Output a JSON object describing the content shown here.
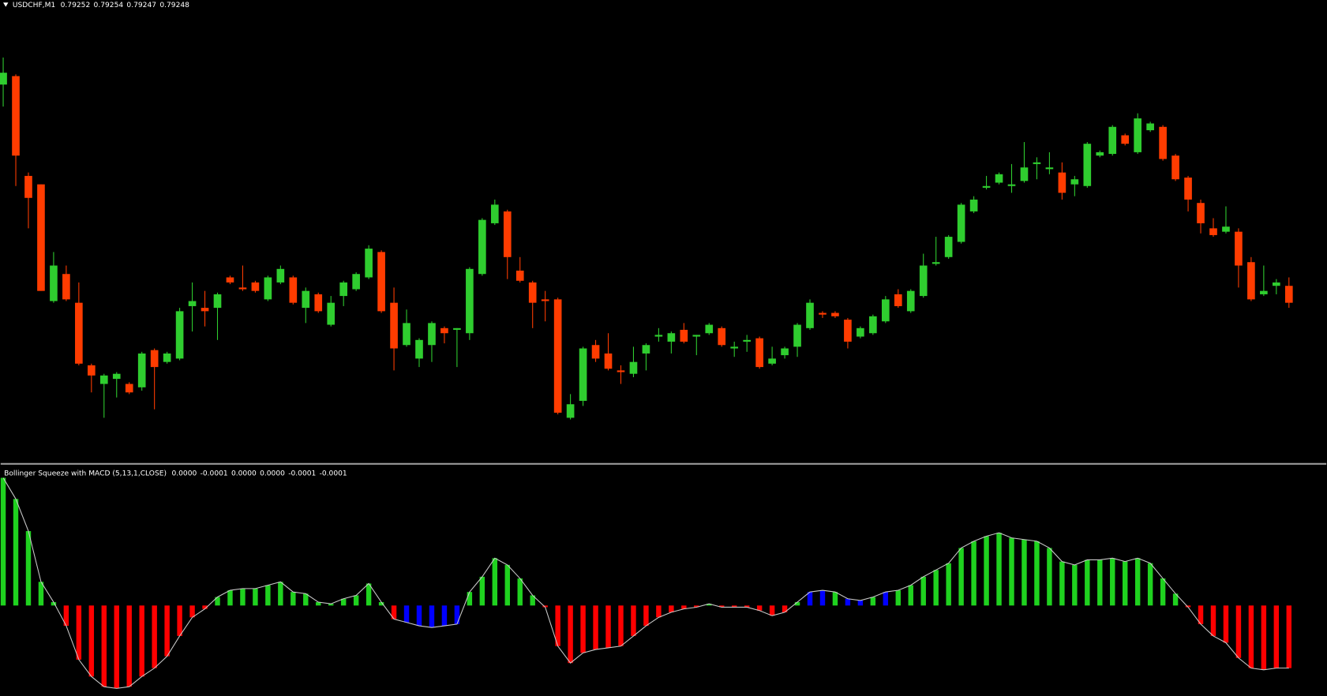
{
  "chart_data": [
    {
      "type": "candlestick",
      "title": "USDCHF,M1",
      "title_values": [
        "0.79252",
        "0.79254",
        "0.79247",
        "0.79248"
      ],
      "up_color": "#2fcd2f",
      "down_color": "#ff3c00",
      "ylim": [
        0.79156,
        0.7943
      ],
      "open": [
        0.7938,
        0.79385,
        0.79326,
        0.79321,
        0.79252,
        0.79268,
        0.79251,
        0.79214,
        0.79203,
        0.79206,
        0.79203,
        0.79201,
        0.79223,
        0.79216,
        0.79218,
        0.79249,
        0.79248,
        0.79248,
        0.79266,
        0.7926,
        0.79263,
        0.79253,
        0.79263,
        0.79266,
        0.79248,
        0.79256,
        0.79238,
        0.79255,
        0.79259,
        0.79266,
        0.79281,
        0.79251,
        0.79226,
        0.79218,
        0.79226,
        0.79236,
        0.79235,
        0.79233,
        0.79268,
        0.79298,
        0.79305,
        0.7927,
        0.79263,
        0.79253,
        0.79253,
        0.79183,
        0.79193,
        0.79226,
        0.79221,
        0.79211,
        0.79209,
        0.79221,
        0.79231,
        0.79228,
        0.79235,
        0.79231,
        0.79233,
        0.79236,
        0.79224,
        0.79228,
        0.7923,
        0.79215,
        0.7922,
        0.79225,
        0.79236,
        0.79245,
        0.79245,
        0.79241,
        0.79231,
        0.79233,
        0.7924,
        0.79256,
        0.79246,
        0.79255,
        0.79274,
        0.79278,
        0.79287,
        0.79305,
        0.79319,
        0.79322,
        0.7932,
        0.79323,
        0.79333,
        0.7933,
        0.79328,
        0.79321,
        0.7932,
        0.79338,
        0.79339,
        0.7935,
        0.7934,
        0.79353,
        0.79355,
        0.79338,
        0.79325,
        0.7931,
        0.79295,
        0.79293,
        0.79293,
        0.79275,
        0.79256,
        0.79261,
        0.79261
      ],
      "high": [
        0.79396,
        0.79386,
        0.79328,
        0.79321,
        0.79281,
        0.79273,
        0.79263,
        0.79215,
        0.79209,
        0.7921,
        0.79204,
        0.79222,
        0.79224,
        0.79222,
        0.79248,
        0.79263,
        0.79258,
        0.79257,
        0.79267,
        0.79273,
        0.79264,
        0.79267,
        0.79273,
        0.79267,
        0.7926,
        0.79257,
        0.79255,
        0.79264,
        0.79269,
        0.79285,
        0.79282,
        0.7926,
        0.79247,
        0.7923,
        0.7924,
        0.79237,
        0.79236,
        0.79272,
        0.79301,
        0.79312,
        0.79306,
        0.79278,
        0.79264,
        0.79258,
        0.79254,
        0.79197,
        0.79225,
        0.79229,
        0.79233,
        0.79214,
        0.79225,
        0.79227,
        0.79236,
        0.79234,
        0.79239,
        0.79232,
        0.79239,
        0.79237,
        0.79228,
        0.79232,
        0.79231,
        0.79225,
        0.79225,
        0.79239,
        0.79253,
        0.79246,
        0.79246,
        0.79242,
        0.79237,
        0.79244,
        0.79255,
        0.79259,
        0.79259,
        0.7928,
        0.7929,
        0.79291,
        0.7931,
        0.79314,
        0.79326,
        0.79328,
        0.79333,
        0.79346,
        0.79337,
        0.7934,
        0.79334,
        0.79326,
        0.79346,
        0.79341,
        0.79356,
        0.79351,
        0.79363,
        0.79358,
        0.79356,
        0.79339,
        0.79326,
        0.79312,
        0.79301,
        0.79308,
        0.79295,
        0.79278,
        0.79273,
        0.79265,
        0.79266
      ],
      "low": [
        0.79367,
        0.7932,
        0.79295,
        0.79258,
        0.79251,
        0.79252,
        0.79214,
        0.79198,
        0.79183,
        0.79195,
        0.79197,
        0.79199,
        0.79188,
        0.79215,
        0.79217,
        0.79234,
        0.79237,
        0.79229,
        0.79262,
        0.79258,
        0.79257,
        0.79252,
        0.79262,
        0.7925,
        0.79239,
        0.79245,
        0.79237,
        0.79249,
        0.79258,
        0.79265,
        0.79245,
        0.79211,
        0.79225,
        0.79213,
        0.79216,
        0.79227,
        0.79213,
        0.79229,
        0.79267,
        0.79297,
        0.79265,
        0.79263,
        0.79236,
        0.7924,
        0.79185,
        0.79182,
        0.7919,
        0.79216,
        0.79211,
        0.79203,
        0.79207,
        0.79211,
        0.79228,
        0.79221,
        0.79227,
        0.7922,
        0.79232,
        0.79225,
        0.79219,
        0.79222,
        0.79212,
        0.79214,
        0.79218,
        0.79219,
        0.79235,
        0.79242,
        0.79242,
        0.79224,
        0.7923,
        0.79232,
        0.79239,
        0.79248,
        0.79245,
        0.79254,
        0.79273,
        0.79277,
        0.79286,
        0.79304,
        0.79318,
        0.79321,
        0.79316,
        0.79322,
        0.79324,
        0.79327,
        0.79312,
        0.79314,
        0.79319,
        0.79337,
        0.79338,
        0.79344,
        0.79339,
        0.79352,
        0.79335,
        0.79323,
        0.79305,
        0.79292,
        0.7929,
        0.79292,
        0.7926,
        0.79252,
        0.79255,
        0.79256,
        0.79248
      ],
      "close": [
        0.79387,
        0.79338,
        0.79313,
        0.79258,
        0.79273,
        0.79253,
        0.79215,
        0.79208,
        0.79208,
        0.79209,
        0.79198,
        0.79221,
        0.79213,
        0.79221,
        0.79246,
        0.79252,
        0.79246,
        0.79256,
        0.79263,
        0.79259,
        0.79258,
        0.79266,
        0.79271,
        0.79251,
        0.79258,
        0.79246,
        0.79251,
        0.79263,
        0.79268,
        0.79283,
        0.79246,
        0.79224,
        0.79239,
        0.79229,
        0.79239,
        0.79233,
        0.79236,
        0.79271,
        0.793,
        0.79309,
        0.79278,
        0.79264,
        0.79251,
        0.79252,
        0.79186,
        0.79191,
        0.79224,
        0.79218,
        0.79212,
        0.7921,
        0.79216,
        0.79226,
        0.79232,
        0.79233,
        0.79228,
        0.79232,
        0.79238,
        0.79226,
        0.79225,
        0.79229,
        0.79213,
        0.79218,
        0.79224,
        0.79238,
        0.79251,
        0.79244,
        0.79243,
        0.79228,
        0.79236,
        0.79243,
        0.79253,
        0.79249,
        0.79258,
        0.79273,
        0.79275,
        0.7929,
        0.79309,
        0.79312,
        0.7932,
        0.79327,
        0.79321,
        0.79331,
        0.79334,
        0.79331,
        0.79316,
        0.79324,
        0.79345,
        0.7934,
        0.79355,
        0.79345,
        0.7936,
        0.79357,
        0.79336,
        0.79324,
        0.79312,
        0.79298,
        0.79291,
        0.79296,
        0.79273,
        0.79253,
        0.79258,
        0.79263,
        0.79251
      ]
    },
    {
      "type": "bar",
      "title": "Bollinger Squeeze with MACD (5,13,1,CLOSE)",
      "title_values": [
        "0.0000",
        "-0.0001",
        "0.0000",
        "0.0000",
        "-0.0001",
        "-0.0001"
      ],
      "line_color": "#c8c8c8",
      "ylim": [
        -0.000214,
        0.00033
      ],
      "values": [
        0.000302,
        0.000252,
        0.000176,
        5.6e-05,
        8e-06,
        -4.8e-05,
        -0.000128,
        -0.000168,
        -0.000192,
        -0.000196,
        -0.000192,
        -0.000168,
        -0.000148,
        -0.00012,
        -7.2e-05,
        -2.8e-05,
        -8e-06,
        2e-05,
        3.6e-05,
        4e-05,
        4e-05,
        4.8e-05,
        5.6e-05,
        3.2e-05,
        2.8e-05,
        8e-06,
        4e-06,
        1.6e-05,
        2.4e-05,
        5.2e-05,
        8e-06,
        -3.2e-05,
        -4e-05,
        -4.8e-05,
        -5.2e-05,
        -4.8e-05,
        -4.4e-05,
        3.2e-05,
        6.8e-05,
        0.000112,
        9.6e-05,
        6.4e-05,
        2.4e-05,
        -4e-06,
        -9.6e-05,
        -0.000136,
        -0.000112,
        -0.000104,
        -0.0001,
        -9.6e-05,
        -7.2e-05,
        -4.8e-05,
        -2.8e-05,
        -1.6e-05,
        -8e-06,
        -4e-06,
        4e-06,
        -4e-06,
        -4e-06,
        -4e-06,
        -1.2e-05,
        -2.4e-05,
        -1.6e-05,
        8e-06,
        3.2e-05,
        3.6e-05,
        3.2e-05,
        1.6e-05,
        1.2e-05,
        2e-05,
        3.2e-05,
        3.6e-05,
        4.8e-05,
        6.8e-05,
        8.4e-05,
        0.0001,
        0.000136,
        0.000152,
        0.000164,
        0.000172,
        0.00016,
        0.000156,
        0.000152,
        0.000136,
        0.000104,
        9.6e-05,
        0.000108,
        0.000108,
        0.000112,
        0.000104,
        0.000112,
        0.0001,
        6.4e-05,
        2.8e-05,
        -4e-06,
        -4.4e-05,
        -7.2e-05,
        -8.8e-05,
        -0.000124,
        -0.000148,
        -0.000152,
        -0.000148,
        -0.000148
      ],
      "colors": [
        "#1fd21f",
        "#1fd21f",
        "#1fd21f",
        "#1fd21f",
        "#1fd21f",
        "#ff0000",
        "#ff0000",
        "#ff0000",
        "#ff0000",
        "#ff0000",
        "#ff0000",
        "#ff0000",
        "#ff0000",
        "#ff0000",
        "#ff0000",
        "#ff0000",
        "#ff0000",
        "#1fd21f",
        "#1fd21f",
        "#1fd21f",
        "#1fd21f",
        "#1fd21f",
        "#1fd21f",
        "#1fd21f",
        "#1fd21f",
        "#1fd21f",
        "#1fd21f",
        "#1fd21f",
        "#1fd21f",
        "#1fd21f",
        "#1fd21f",
        "#ff0000",
        "#0000ff",
        "#0000ff",
        "#0000ff",
        "#0000ff",
        "#0000ff",
        "#1fd21f",
        "#1fd21f",
        "#1fd21f",
        "#1fd21f",
        "#1fd21f",
        "#1fd21f",
        "#ff0000",
        "#ff0000",
        "#ff0000",
        "#ff0000",
        "#ff0000",
        "#ff0000",
        "#ff0000",
        "#ff0000",
        "#ff0000",
        "#ff0000",
        "#ff0000",
        "#ff0000",
        "#ff0000",
        "#1fd21f",
        "#ff0000",
        "#ff0000",
        "#ff0000",
        "#ff0000",
        "#ff0000",
        "#ff0000",
        "#1fd21f",
        "#0000ff",
        "#0000ff",
        "#1fd21f",
        "#0000ff",
        "#0000ff",
        "#1fd21f",
        "#0000ff",
        "#1fd21f",
        "#1fd21f",
        "#1fd21f",
        "#1fd21f",
        "#1fd21f",
        "#1fd21f",
        "#1fd21f",
        "#1fd21f",
        "#1fd21f",
        "#1fd21f",
        "#1fd21f",
        "#1fd21f",
        "#1fd21f",
        "#1fd21f",
        "#1fd21f",
        "#1fd21f",
        "#1fd21f",
        "#1fd21f",
        "#1fd21f",
        "#1fd21f",
        "#1fd21f",
        "#1fd21f",
        "#1fd21f",
        "#ff0000",
        "#ff0000",
        "#ff0000",
        "#ff0000",
        "#ff0000",
        "#ff0000",
        "#ff0000",
        "#ff0000",
        "#ff0000",
        "#ff0000"
      ]
    }
  ]
}
